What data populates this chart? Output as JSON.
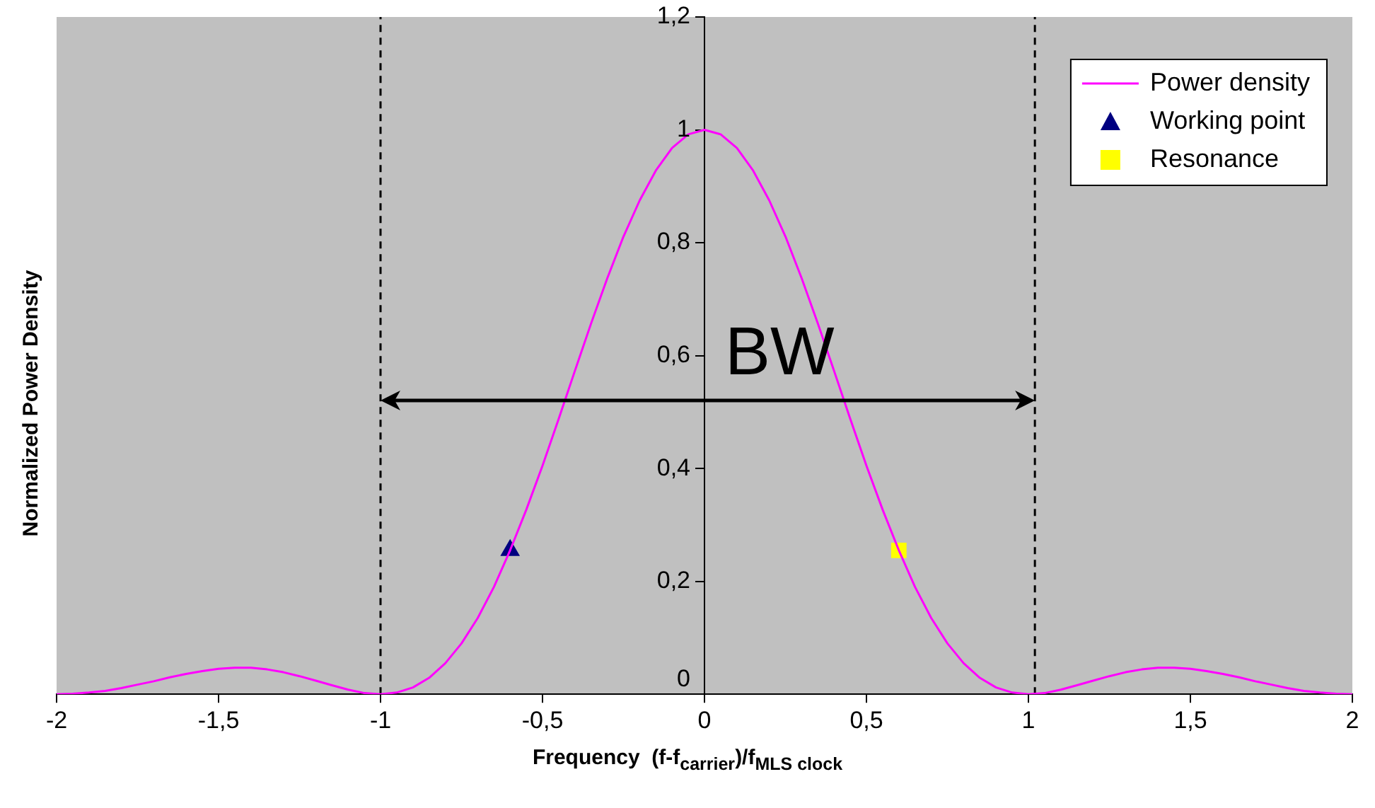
{
  "chart_data": {
    "type": "line",
    "xlabel": "Frequency  (f-f$_{carrier}$)/f$_{MLS clock}$",
    "ylabel": "Normalized Power Density",
    "xlim": [
      -2,
      2
    ],
    "xticks": [
      -2,
      {
        "value": -1.5,
        "label": "-1,5"
      },
      -1,
      {
        "value": -0.5,
        "label": "-0,5"
      },
      0,
      {
        "value": 0.5,
        "label": "0,5"
      },
      1,
      {
        "value": 1.5,
        "label": "1,5"
      },
      2
    ],
    "ylim": [
      0,
      1.2
    ],
    "yticks": [
      0,
      {
        "value": 0.2,
        "label": "0,2"
      },
      {
        "value": 0.4,
        "label": "0,4"
      },
      {
        "value": 0.6,
        "label": "0,6"
      },
      {
        "value": 0.8,
        "label": "0,8"
      },
      1,
      {
        "value": 1.2,
        "label": "1,2"
      }
    ],
    "grid": false,
    "legend": "top right",
    "annotations": [
      "BW"
    ],
    "ref_lines": [
      {
        "axis": "x",
        "value": -1,
        "color": "#000000",
        "line_style": "dashed"
      },
      {
        "axis": "x",
        "value": 1.02,
        "color": "#000000",
        "line_style": "dashed"
      }
    ],
    "series": [
      {
        "name": "Power density",
        "color": "#ff00ff",
        "marker": "none",
        "line_style": "solid",
        "x": [
          -2,
          -1.95,
          -1.9,
          -1.85,
          -1.8,
          -1.75,
          -1.7,
          -1.65,
          -1.6,
          -1.55,
          -1.5,
          -1.45,
          -1.4,
          -1.35,
          -1.3,
          -1.25,
          -1.2,
          -1.15,
          -1.1,
          -1.05,
          -1,
          -0.95,
          -0.9,
          -0.85,
          -0.8,
          -0.75,
          -0.7,
          -0.65,
          -0.6,
          -0.55,
          -0.5,
          -0.45,
          -0.4,
          -0.35,
          -0.3,
          -0.25,
          -0.2,
          -0.15,
          -0.1,
          -0.05,
          0,
          0.05,
          0.1,
          0.15,
          0.2,
          0.25,
          0.3,
          0.35,
          0.4,
          0.45,
          0.5,
          0.55,
          0.6,
          0.65,
          0.7,
          0.75,
          0.8,
          0.85,
          0.9,
          0.95,
          1,
          1.05,
          1.1,
          1.15,
          1.2,
          1.25,
          1.3,
          1.35,
          1.4,
          1.45,
          1.5,
          1.55,
          1.6,
          1.65,
          1.7,
          1.75,
          1.8,
          1.85,
          1.9,
          1.95,
          2
        ],
        "values": [
          0,
          0.001,
          0.003,
          0.006,
          0.011,
          0.017,
          0.023,
          0.03,
          0.036,
          0.041,
          0.045,
          0.047,
          0.047,
          0.044,
          0.039,
          0.032,
          0.024,
          0.016,
          0.008,
          0.002,
          0,
          0.003,
          0.012,
          0.029,
          0.055,
          0.09,
          0.135,
          0.19,
          0.255,
          0.327,
          0.405,
          0.488,
          0.573,
          0.657,
          0.737,
          0.811,
          0.875,
          0.928,
          0.968,
          0.992,
          1,
          0.992,
          0.968,
          0.928,
          0.875,
          0.811,
          0.737,
          0.657,
          0.573,
          0.488,
          0.405,
          0.327,
          0.255,
          0.19,
          0.135,
          0.09,
          0.055,
          0.029,
          0.012,
          0.003,
          0,
          0.002,
          0.008,
          0.016,
          0.024,
          0.032,
          0.039,
          0.044,
          0.047,
          0.047,
          0.045,
          0.041,
          0.036,
          0.03,
          0.023,
          0.017,
          0.011,
          0.006,
          0.003,
          0.001,
          0
        ]
      },
      {
        "name": "Working point",
        "type": "scatter",
        "color": "#000080",
        "marker": "triangle",
        "x": [
          -0.6
        ],
        "values": [
          0.255
        ]
      },
      {
        "name": "Resonance",
        "type": "scatter",
        "color": "#ffff00",
        "marker": "square",
        "x": [
          0.6
        ],
        "values": [
          0.255
        ]
      }
    ]
  }
}
